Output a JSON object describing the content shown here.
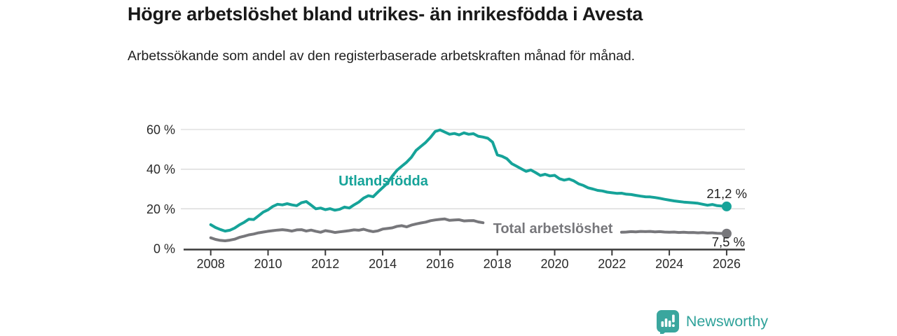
{
  "header": {
    "title": "Högre arbetslöshet bland utrikes- än inrikesfödda i Avesta",
    "subtitle": "Arbetssökande som andel av den registerbaserade arbetskraften månad för månad."
  },
  "colors": {
    "accent_teal": "#16a399",
    "series_gray": "#77777b",
    "grid": "#d9d9d9",
    "axis": "#3b3b3b",
    "tick_text": "#2a2a2a",
    "value_text": "#222222",
    "brand_teal": "#2fa29a",
    "brand_icon_bg": "#3aa69e"
  },
  "chart_data": {
    "type": "line",
    "title": "Högre arbetslöshet bland utrikes- än inrikesfödda i Avesta",
    "subtitle": "Arbetssökande som andel av den registerbaserade arbetskraften månad för månad.",
    "x_start": 2008,
    "x_step_years": 0.166667,
    "xlim": [
      2007.05,
      2026.65
    ],
    "ylim": [
      0,
      62
    ],
    "grid": "horizontal",
    "x_ticks": [
      2008,
      2010,
      2012,
      2014,
      2016,
      2018,
      2020,
      2022,
      2024,
      2026
    ],
    "x_tick_labels": [
      "2008",
      "2010",
      "2012",
      "2014",
      "2016",
      "2018",
      "2020",
      "2022",
      "2024",
      "2026"
    ],
    "y_ticks": [
      0,
      20,
      40,
      60
    ],
    "y_tick_labels": [
      "0 %",
      "20 %",
      "40 %",
      "60 %"
    ],
    "series": [
      {
        "name": "Utlandsfödda",
        "end_label": "21,2 %",
        "end_value": 21.2,
        "values": [
          12.0,
          10.6,
          9.6,
          8.8,
          9.2,
          10.3,
          11.9,
          13.2,
          14.8,
          14.6,
          16.5,
          18.4,
          19.5,
          21.2,
          22.3,
          22.0,
          22.6,
          22.0,
          21.6,
          23.1,
          23.7,
          21.9,
          20.0,
          20.4,
          19.6,
          20.1,
          19.3,
          19.8,
          20.9,
          20.4,
          22.0,
          23.4,
          25.4,
          26.6,
          26.1,
          28.5,
          30.7,
          33.0,
          36.5,
          39.5,
          41.5,
          43.5,
          46.0,
          49.5,
          51.5,
          53.5,
          56.0,
          59.0,
          59.8,
          58.7,
          57.6,
          58.0,
          57.3,
          58.3,
          57.6,
          57.9,
          56.6,
          56.2,
          55.6,
          53.6,
          47.2,
          46.5,
          45.3,
          42.8,
          41.5,
          40.2,
          38.9,
          39.6,
          38.3,
          36.8,
          37.4,
          36.6,
          36.9,
          35.2,
          34.5,
          35.0,
          34.1,
          32.6,
          31.8,
          30.6,
          30.0,
          29.3,
          29.0,
          28.4,
          28.1,
          27.8,
          27.9,
          27.4,
          27.2,
          26.8,
          26.4,
          26.1,
          26.0,
          25.7,
          25.3,
          24.8,
          24.4,
          24.0,
          23.7,
          23.4,
          23.2,
          23.0,
          22.8,
          22.3,
          21.8,
          22.2,
          21.6,
          21.4,
          21.2
        ]
      },
      {
        "name": "Total arbetslöshet",
        "end_label": "7,5 %",
        "end_value": 7.5,
        "values": [
          5.4,
          4.6,
          4.1,
          3.9,
          4.2,
          4.7,
          5.6,
          6.2,
          6.9,
          7.3,
          7.9,
          8.3,
          8.7,
          9.0,
          9.3,
          9.5,
          9.2,
          8.8,
          9.4,
          9.5,
          8.8,
          9.3,
          8.7,
          8.2,
          9.0,
          8.6,
          8.1,
          8.4,
          8.7,
          9.0,
          9.4,
          9.2,
          9.7,
          9.0,
          8.5,
          8.9,
          9.8,
          10.1,
          10.4,
          11.2,
          11.5,
          10.9,
          11.8,
          12.4,
          12.9,
          13.3,
          14.0,
          14.4,
          14.7,
          14.9,
          14.2,
          14.4,
          14.5,
          13.9,
          14.0,
          14.1,
          13.4,
          13.0,
          null,
          null,
          null,
          null,
          null,
          null,
          null,
          null,
          null,
          null,
          null,
          null,
          null,
          null,
          null,
          null,
          null,
          null,
          null,
          null,
          null,
          null,
          null,
          null,
          null,
          null,
          null,
          null,
          8.2,
          8.3,
          8.5,
          8.4,
          8.6,
          8.5,
          8.6,
          8.4,
          8.5,
          8.3,
          8.2,
          8.3,
          8.1,
          8.2,
          8.0,
          8.1,
          7.9,
          8.0,
          7.8,
          7.9,
          7.7,
          7.6,
          7.5
        ]
      }
    ],
    "legend_position": "inline-labels"
  },
  "footer": {
    "brand": "Newsworthy"
  }
}
